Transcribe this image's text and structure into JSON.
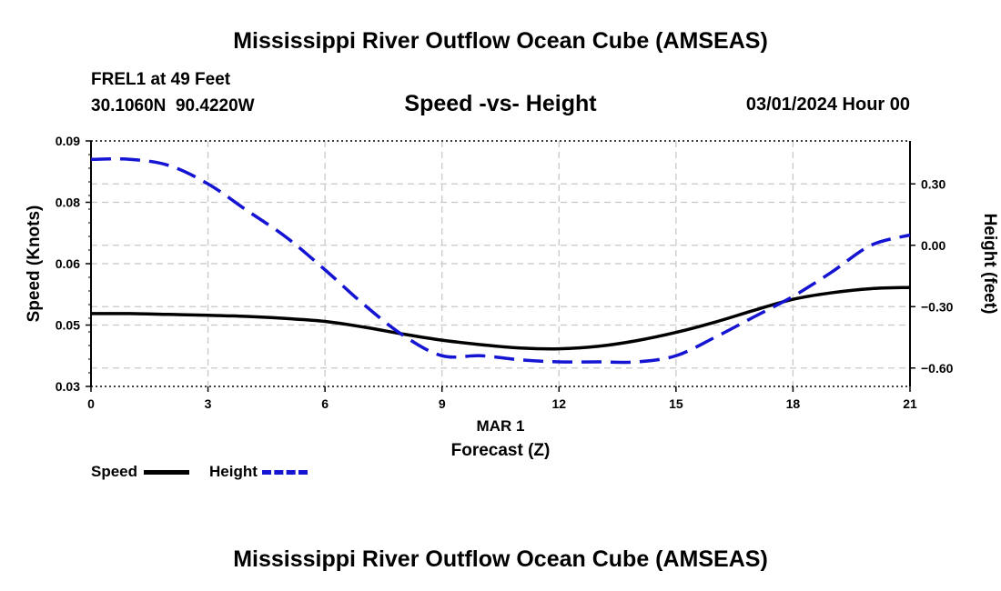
{
  "header": {
    "title": "Mississippi River Outflow Ocean Cube (AMSEAS)",
    "station": "FREL1 at 49 Feet",
    "coords": "30.1060N  90.4220W",
    "subtitle": "Speed -vs- Height",
    "datetime": "03/01/2024 Hour 00",
    "footer_title": "Mississippi River Outflow Ocean Cube (AMSEAS)"
  },
  "legend": {
    "speed_label": "Speed",
    "height_label": "Height"
  },
  "chart_data": {
    "type": "line",
    "title": "Speed -vs- Height",
    "xlabel": "Forecast (Z)",
    "xlabel_date": "MAR 1",
    "ylabel_left": "Speed (Knots)",
    "ylabel_right": "Height (feet)",
    "xlim": [
      0,
      21
    ],
    "x_ticks": [
      "0",
      "3",
      "6",
      "9",
      "12",
      "15",
      "18",
      "21"
    ],
    "x_tick_values": [
      0,
      3,
      6,
      9,
      12,
      15,
      18,
      21
    ],
    "ylim_left": [
      0.03,
      0.09
    ],
    "y_left_ticks": [
      "0.03",
      "0.05",
      "0.06",
      "0.08",
      "0.09"
    ],
    "y_left_tick_values": [
      0.03,
      0.045,
      0.06,
      0.075,
      0.09
    ],
    "ylim_right": [
      -0.69,
      0.51
    ],
    "y_right_ticks": [
      "0.30",
      "0.00",
      "−0.30",
      "−0.60"
    ],
    "y_right_tick_values": [
      0.3,
      0.0,
      -0.3,
      -0.6
    ],
    "grid": true,
    "series": [
      {
        "name": "Speed",
        "axis": "left",
        "color": "#000000",
        "style": "solid",
        "x": [
          0,
          1,
          2,
          3,
          4,
          5,
          6,
          7,
          8,
          9,
          10,
          11,
          12,
          13,
          14,
          15,
          16,
          17,
          18,
          19,
          20,
          21
        ],
        "values": [
          0.0478,
          0.0478,
          0.0476,
          0.0474,
          0.0471,
          0.0466,
          0.0459,
          0.0445,
          0.0428,
          0.0413,
          0.0402,
          0.0394,
          0.0392,
          0.0398,
          0.0412,
          0.0432,
          0.0457,
          0.0486,
          0.0513,
          0.0529,
          0.0539,
          0.0542
        ]
      },
      {
        "name": "Height",
        "axis": "right",
        "color": "#1414d2",
        "style": "dashed",
        "x": [
          0,
          1,
          2,
          3,
          4,
          5,
          6,
          7,
          8,
          9,
          10,
          11,
          12,
          13,
          14,
          15,
          16,
          17,
          18,
          19,
          20,
          21
        ],
        "values": [
          0.42,
          0.42,
          0.39,
          0.3,
          0.17,
          0.04,
          -0.12,
          -0.29,
          -0.44,
          -0.54,
          -0.54,
          -0.56,
          -0.57,
          -0.57,
          -0.57,
          -0.54,
          -0.45,
          -0.35,
          -0.25,
          -0.13,
          0.0,
          0.05
        ]
      }
    ]
  }
}
